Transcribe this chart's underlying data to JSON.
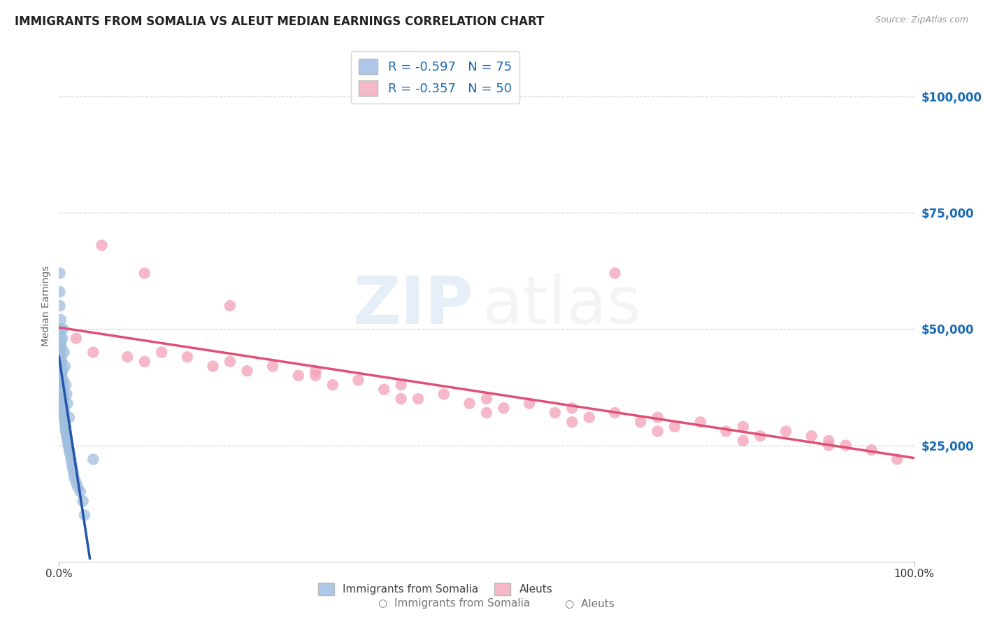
{
  "title": "IMMIGRANTS FROM SOMALIA VS ALEUT MEDIAN EARNINGS CORRELATION CHART",
  "source": "Source: ZipAtlas.com",
  "ylabel": "Median Earnings",
  "xlim": [
    0.0,
    1.0
  ],
  "ylim": [
    0,
    110000
  ],
  "yticks": [
    0,
    25000,
    50000,
    75000,
    100000
  ],
  "ytick_labels": [
    "",
    "$25,000",
    "$50,000",
    "$75,000",
    "$100,000"
  ],
  "xtick_labels": [
    "0.0%",
    "100.0%"
  ],
  "legend_entries": [
    {
      "label": "R = -0.597   N = 75",
      "color": "#aec6e8"
    },
    {
      "label": "R = -0.357   N = 50",
      "color": "#f4b8c8"
    }
  ],
  "somalia": {
    "name": "Immigrants from Somalia",
    "color": "#a0bede",
    "line_color": "#2255aa",
    "R": -0.597,
    "N": 75,
    "x": [
      0.001,
      0.001,
      0.001,
      0.002,
      0.002,
      0.002,
      0.002,
      0.002,
      0.002,
      0.003,
      0.003,
      0.003,
      0.003,
      0.003,
      0.003,
      0.003,
      0.004,
      0.004,
      0.004,
      0.004,
      0.004,
      0.004,
      0.004,
      0.005,
      0.005,
      0.005,
      0.005,
      0.005,
      0.005,
      0.006,
      0.006,
      0.006,
      0.006,
      0.006,
      0.007,
      0.007,
      0.007,
      0.007,
      0.008,
      0.008,
      0.008,
      0.009,
      0.009,
      0.01,
      0.01,
      0.011,
      0.011,
      0.012,
      0.012,
      0.013,
      0.014,
      0.015,
      0.016,
      0.017,
      0.018,
      0.02,
      0.022,
      0.025,
      0.028,
      0.03,
      0.002,
      0.002,
      0.003,
      0.003,
      0.004,
      0.004,
      0.005,
      0.005,
      0.006,
      0.007,
      0.008,
      0.009,
      0.01,
      0.012,
      0.04
    ],
    "y": [
      62000,
      58000,
      55000,
      52000,
      50000,
      48000,
      46000,
      45000,
      44000,
      43000,
      42000,
      42000,
      41000,
      41000,
      40000,
      40000,
      39000,
      38000,
      38000,
      37000,
      37000,
      36000,
      36000,
      36000,
      35000,
      35000,
      34000,
      34000,
      33000,
      33000,
      32000,
      32000,
      31000,
      31000,
      30000,
      30000,
      30000,
      29000,
      29000,
      28000,
      28000,
      27000,
      27000,
      26000,
      26000,
      25000,
      25000,
      24000,
      24000,
      23000,
      22000,
      21000,
      20000,
      19000,
      18000,
      17000,
      16000,
      15000,
      13000,
      10000,
      47000,
      44000,
      46000,
      43000,
      48000,
      41000,
      50000,
      39000,
      45000,
      42000,
      38000,
      36000,
      34000,
      31000,
      22000
    ]
  },
  "aleuts": {
    "name": "Aleuts",
    "color": "#f4a0b8",
    "line_color": "#e05075",
    "R": -0.357,
    "N": 50,
    "x": [
      0.02,
      0.04,
      0.08,
      0.1,
      0.12,
      0.15,
      0.18,
      0.2,
      0.22,
      0.25,
      0.28,
      0.3,
      0.32,
      0.35,
      0.38,
      0.4,
      0.42,
      0.45,
      0.48,
      0.5,
      0.52,
      0.55,
      0.58,
      0.6,
      0.62,
      0.65,
      0.68,
      0.7,
      0.72,
      0.75,
      0.78,
      0.8,
      0.82,
      0.85,
      0.88,
      0.9,
      0.92,
      0.95,
      0.98,
      0.05,
      0.1,
      0.2,
      0.3,
      0.4,
      0.5,
      0.6,
      0.7,
      0.8,
      0.9,
      0.65
    ],
    "y": [
      48000,
      45000,
      44000,
      43000,
      45000,
      44000,
      42000,
      43000,
      41000,
      42000,
      40000,
      41000,
      38000,
      39000,
      37000,
      38000,
      35000,
      36000,
      34000,
      35000,
      33000,
      34000,
      32000,
      33000,
      31000,
      32000,
      30000,
      31000,
      29000,
      30000,
      28000,
      29000,
      27000,
      28000,
      27000,
      26000,
      25000,
      24000,
      22000,
      68000,
      62000,
      55000,
      40000,
      35000,
      32000,
      30000,
      28000,
      26000,
      25000,
      62000
    ]
  },
  "background_color": "#ffffff",
  "grid_color": "#cccccc",
  "title_color": "#222222",
  "title_fontsize": 12,
  "axis_label_color": "#666666",
  "tick_color_right": "#1a6bb5"
}
